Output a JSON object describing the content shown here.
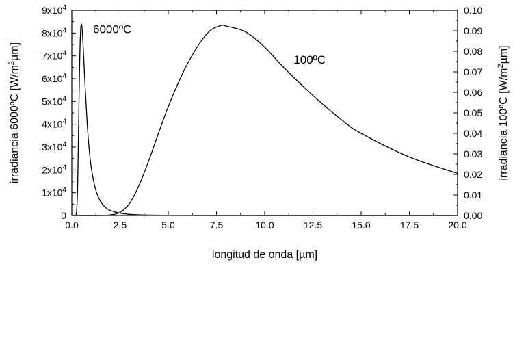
{
  "chart_data": {
    "type": "line",
    "title": "",
    "xlabel": "longitud de onda [µm]",
    "ylabel_left": {
      "base": "irradiancia 6000ºC [W/m",
      "sup": "2",
      "tail": "µm]"
    },
    "ylabel_right": {
      "base": "irradiancia 100ºC [W/m",
      "sup": "2",
      "tail": "µm]"
    },
    "xlim": [
      0,
      20
    ],
    "ylim_left": [
      0,
      90000
    ],
    "ylim_right": [
      0,
      0.1
    ],
    "x_ticks": [
      {
        "value": 0,
        "label": "0.0"
      },
      {
        "value": 2.5,
        "label": "2.5"
      },
      {
        "value": 5,
        "label": "5.0"
      },
      {
        "value": 7.5,
        "label": "7.5"
      },
      {
        "value": 10,
        "label": "10.0"
      },
      {
        "value": 12.5,
        "label": "12.5"
      },
      {
        "value": 15,
        "label": "15.0"
      },
      {
        "value": 17.5,
        "label": "17.5"
      },
      {
        "value": 20,
        "label": "20.0"
      }
    ],
    "y_left_ticks": [
      {
        "value": 0,
        "label": "0",
        "exp": ""
      },
      {
        "value": 10000,
        "label": "1x10",
        "exp": "4"
      },
      {
        "value": 20000,
        "label": "2x10",
        "exp": "4"
      },
      {
        "value": 30000,
        "label": "3x10",
        "exp": "4"
      },
      {
        "value": 40000,
        "label": "4x10",
        "exp": "4"
      },
      {
        "value": 50000,
        "label": "5x10",
        "exp": "4"
      },
      {
        "value": 60000,
        "label": "6x10",
        "exp": "4"
      },
      {
        "value": 70000,
        "label": "7x10",
        "exp": "4"
      },
      {
        "value": 80000,
        "label": "8x10",
        "exp": "4"
      },
      {
        "value": 90000,
        "label": "9x10",
        "exp": "4"
      }
    ],
    "y_right_ticks": [
      {
        "value": 0,
        "label": "0.00"
      },
      {
        "value": 0.01,
        "label": "0.01"
      },
      {
        "value": 0.02,
        "label": "0.02"
      },
      {
        "value": 0.03,
        "label": "0.03"
      },
      {
        "value": 0.04,
        "label": "0.04"
      },
      {
        "value": 0.05,
        "label": "0.05"
      },
      {
        "value": 0.06,
        "label": "0.06"
      },
      {
        "value": 0.07,
        "label": "0.07"
      },
      {
        "value": 0.08,
        "label": "0.08"
      },
      {
        "value": 0.09,
        "label": "0.09"
      },
      {
        "value": 0.1,
        "label": "0.10"
      }
    ],
    "series": [
      {
        "axis": "left",
        "x": [
          0.2,
          0.25,
          0.3,
          0.35,
          0.4,
          0.45,
          0.5,
          0.55,
          0.6,
          0.7,
          0.8,
          0.9,
          1.0,
          1.2,
          1.4,
          1.6,
          1.8,
          2.0,
          2.5,
          3.0,
          3.5,
          4.0,
          5.0,
          6.0,
          7.0,
          8.0,
          10.0,
          12.5,
          15.0,
          20.0
        ],
        "y": [
          0,
          2000,
          12000,
          38000,
          64000,
          80000,
          84000,
          80000,
          72000,
          55000,
          40000,
          29000,
          21500,
          12500,
          7600,
          4800,
          3200,
          2200,
          1000,
          500,
          280,
          170,
          70,
          35,
          20,
          12,
          5,
          2,
          1,
          0
        ]
      },
      {
        "axis": "right",
        "x": [
          0,
          1.5,
          2.0,
          2.5,
          3.0,
          3.5,
          4.0,
          5.0,
          6.0,
          7.0,
          7.7,
          8.0,
          9.0,
          10.0,
          11.0,
          12.5,
          14.0,
          15.0,
          17.5,
          20.0
        ],
        "y": [
          0,
          0,
          0.0003,
          0.0015,
          0.006,
          0.015,
          0.027,
          0.053,
          0.074,
          0.0885,
          0.0925,
          0.0923,
          0.0895,
          0.082,
          0.072,
          0.0585,
          0.0465,
          0.04,
          0.0285,
          0.0205
        ]
      }
    ],
    "annotations": [
      {
        "text": "6000ºC",
        "x": 1.1,
        "y": 80000,
        "axis": "left"
      },
      {
        "text": "100ºC",
        "x": 11.5,
        "y": 0.074,
        "axis": "right"
      }
    ],
    "grid": false,
    "legend": "none"
  }
}
